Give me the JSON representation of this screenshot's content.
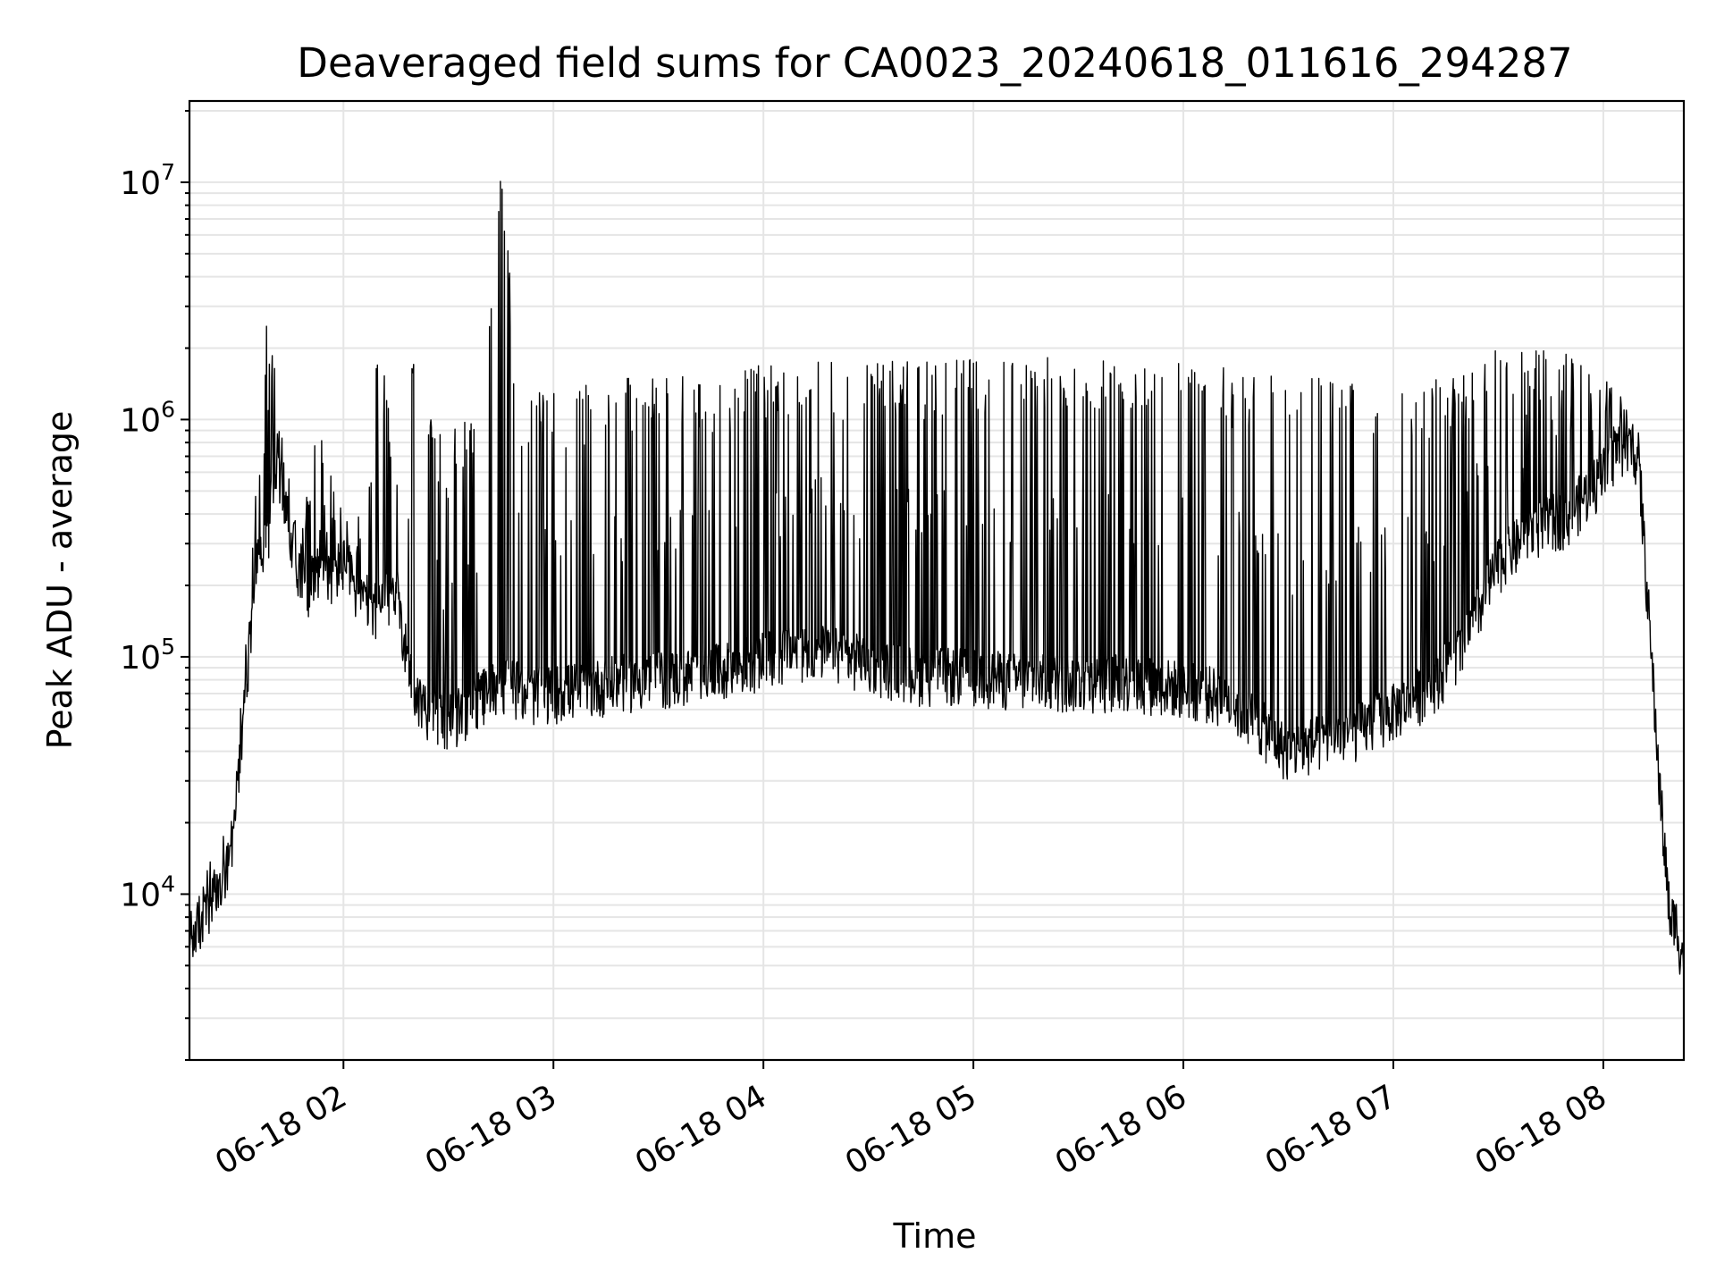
{
  "chart_data": {
    "type": "line",
    "title": "Deaveraged field sums for CA0023_20240618_011616_294287",
    "xlabel": "Time",
    "ylabel": "Peak ADU - average",
    "yscale": "log",
    "ylim": [
      2000,
      22000000
    ],
    "xlim": [
      "2024-06-18 01:16",
      "2024-06-18 08:23"
    ],
    "x_ticks": [
      {
        "value": "2024-06-18 02:00",
        "label": "06-18 02"
      },
      {
        "value": "2024-06-18 03:00",
        "label": "06-18 03"
      },
      {
        "value": "2024-06-18 04:00",
        "label": "06-18 04"
      },
      {
        "value": "2024-06-18 05:00",
        "label": "06-18 05"
      },
      {
        "value": "2024-06-18 06:00",
        "label": "06-18 06"
      },
      {
        "value": "2024-06-18 07:00",
        "label": "06-18 07"
      },
      {
        "value": "2024-06-18 08:00",
        "label": "06-18 08"
      }
    ],
    "y_ticks": [
      {
        "value": 10000,
        "base": "10",
        "exp": "4"
      },
      {
        "value": 100000,
        "base": "10",
        "exp": "5"
      },
      {
        "value": 1000000,
        "base": "10",
        "exp": "6"
      },
      {
        "value": 10000000,
        "base": "10",
        "exp": "7"
      }
    ],
    "grid": true,
    "line_color": "#000000",
    "grid_color": "#e5e5e5",
    "series": [
      {
        "x": [
          "2024-06-18 01:16",
          "2024-06-18 01:20",
          "2024-06-18 01:24",
          "2024-06-18 01:28",
          "2024-06-18 01:32",
          "2024-06-18 01:35",
          "2024-06-18 01:38",
          "2024-06-18 01:41",
          "2024-06-18 01:44",
          "2024-06-18 01:47",
          "2024-06-18 01:50",
          "2024-06-18 01:53",
          "2024-06-18 01:56",
          "2024-06-18 02:00",
          "2024-06-18 02:05",
          "2024-06-18 02:10",
          "2024-06-18 02:15",
          "2024-06-18 02:20",
          "2024-06-18 02:25",
          "2024-06-18 02:30",
          "2024-06-18 02:35",
          "2024-06-18 02:40",
          "2024-06-18 02:45",
          "2024-06-18 02:50",
          "2024-06-18 02:55",
          "2024-06-18 03:00",
          "2024-06-18 03:10",
          "2024-06-18 03:20",
          "2024-06-18 03:30",
          "2024-06-18 03:40",
          "2024-06-18 03:50",
          "2024-06-18 04:00",
          "2024-06-18 04:15",
          "2024-06-18 04:30",
          "2024-06-18 04:45",
          "2024-06-18 05:00",
          "2024-06-18 05:15",
          "2024-06-18 05:30",
          "2024-06-18 05:45",
          "2024-06-18 06:00",
          "2024-06-18 06:10",
          "2024-06-18 06:20",
          "2024-06-18 06:30",
          "2024-06-18 06:40",
          "2024-06-18 06:50",
          "2024-06-18 07:00",
          "2024-06-18 07:10",
          "2024-06-18 07:20",
          "2024-06-18 07:30",
          "2024-06-18 07:40",
          "2024-06-18 07:50",
          "2024-06-18 08:00",
          "2024-06-18 08:05",
          "2024-06-18 08:10",
          "2024-06-18 08:13",
          "2024-06-18 08:16",
          "2024-06-18 08:19",
          "2024-06-18 08:21",
          "2024-06-18 08:23"
        ],
        "baseline": [
          6500,
          8000,
          10000,
          14000,
          70000,
          250000,
          300000,
          700000,
          400000,
          250000,
          200000,
          250000,
          220000,
          250000,
          180000,
          160000,
          200000,
          70000,
          60000,
          55000,
          60000,
          70000,
          80000,
          75000,
          70000,
          72000,
          75000,
          80000,
          82000,
          85000,
          90000,
          100000,
          110000,
          95000,
          85000,
          85000,
          80000,
          80000,
          80000,
          75000,
          70000,
          55000,
          40000,
          45000,
          50000,
          60000,
          75000,
          110000,
          250000,
          350000,
          400000,
          600000,
          800000,
          700000,
          150000,
          30000,
          8000,
          7500,
          5000
        ],
        "peaks": [
          9000,
          12000,
          16000,
          19000,
          120000,
          600000,
          2500000,
          1600000,
          600000,
          400000,
          700000,
          1000000,
          600000,
          500000,
          400000,
          2400000,
          700000,
          2400000,
          1000000,
          800000,
          1200000,
          1000000,
          14800000,
          1300000,
          1300000,
          1300000,
          1400000,
          1500000,
          1500000,
          1600000,
          1600000,
          1700000,
          1800000,
          1800000,
          1800000,
          1800000,
          1850000,
          1850000,
          1800000,
          1800000,
          1700000,
          1600000,
          1600000,
          1500000,
          1500000,
          1500000,
          1500000,
          1600000,
          2000000,
          2200000,
          1900000,
          1500000,
          1300000,
          1000000,
          200000,
          40000,
          10000,
          9500,
          7000
        ]
      }
    ]
  }
}
